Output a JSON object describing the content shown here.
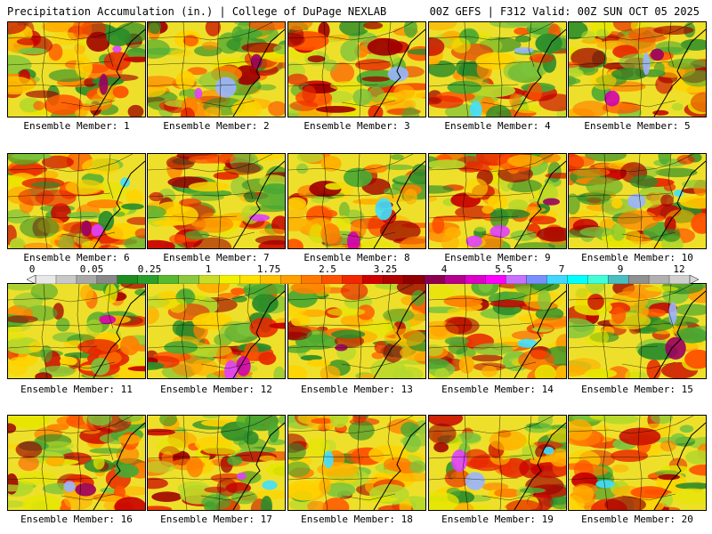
{
  "header": {
    "title_left": "Precipitation Accumulation (in.) | College of DuPage NEXLAB",
    "title_right": "00Z GEFS | F312 Valid: 00Z SUN OCT 05 2025"
  },
  "colorbar": {
    "labels": [
      "0",
      "0.05",
      "0.25",
      "1",
      "1.75",
      "2.5",
      "3.25",
      "4",
      "5.5",
      "7",
      "9",
      "12"
    ],
    "colors": [
      "#e8e8e8",
      "#c8c8c8",
      "#a8a8a8",
      "#888888",
      "#1e8c1e",
      "#2aa02a",
      "#58b830",
      "#8cc83c",
      "#c8dc28",
      "#f0f000",
      "#ffe000",
      "#ffc000",
      "#ffa000",
      "#ff7800",
      "#ff5000",
      "#f02800",
      "#d00000",
      "#b00000",
      "#900000",
      "#8c0050",
      "#b4008c",
      "#dc00c8",
      "#ff00ff",
      "#c870ff",
      "#7890ff",
      "#40d8ff",
      "#00ffff",
      "#40ffd8",
      "#48c0c0",
      "#909090",
      "#b0b0b0",
      "#d0d0d0"
    ]
  },
  "panels": [
    {
      "caption": "Ensemble Member: 1"
    },
    {
      "caption": "Ensemble Member: 2"
    },
    {
      "caption": "Ensemble Member: 3"
    },
    {
      "caption": "Ensemble Member: 4"
    },
    {
      "caption": "Ensemble Member: 5"
    },
    {
      "caption": "Ensemble Member: 6"
    },
    {
      "caption": "Ensemble Member: 7"
    },
    {
      "caption": "Ensemble Member: 8"
    },
    {
      "caption": "Ensemble Member: 9"
    },
    {
      "caption": "Ensemble Member: 10"
    },
    {
      "caption": "Ensemble Member: 11"
    },
    {
      "caption": "Ensemble Member: 12"
    },
    {
      "caption": "Ensemble Member: 13"
    },
    {
      "caption": "Ensemble Member: 14"
    },
    {
      "caption": "Ensemble Member: 15"
    },
    {
      "caption": "Ensemble Member: 16"
    },
    {
      "caption": "Ensemble Member: 17"
    },
    {
      "caption": "Ensemble Member: 18"
    },
    {
      "caption": "Ensemble Member: 19"
    },
    {
      "caption": "Ensemble Member: 20"
    }
  ]
}
